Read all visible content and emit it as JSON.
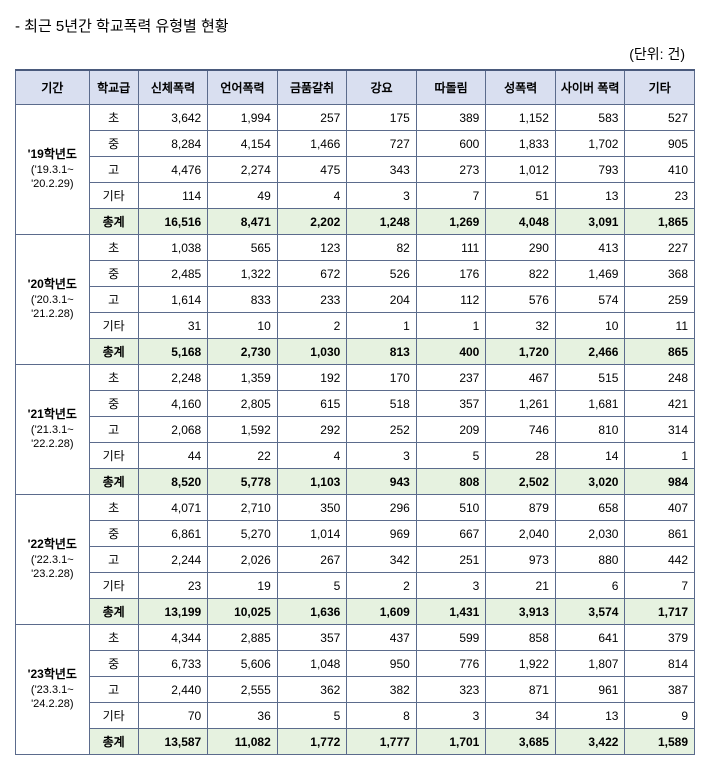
{
  "title": "- 최근 5년간  학교폭력 유형별 현황",
  "unit": "(단위: 건)",
  "headers": {
    "period": "기간",
    "level": "학교급",
    "physical": "신체폭력",
    "verbal": "언어폭력",
    "extortion": "금품갈취",
    "coercion": "강요",
    "bullying": "따돌림",
    "sexual": "성폭력",
    "cyber": "사이버\n폭력",
    "other": "기타"
  },
  "levels": {
    "elem": "초",
    "mid": "중",
    "high": "고",
    "etc": "기타",
    "total": "총계"
  },
  "periods": [
    {
      "name": "'19학년도",
      "range": "('19.3.1~\n'20.2.29)",
      "rows": {
        "elem": [
          "3,642",
          "1,994",
          "257",
          "175",
          "389",
          "1,152",
          "583",
          "527"
        ],
        "mid": [
          "8,284",
          "4,154",
          "1,466",
          "727",
          "600",
          "1,833",
          "1,702",
          "905"
        ],
        "high": [
          "4,476",
          "2,274",
          "475",
          "343",
          "273",
          "1,012",
          "793",
          "410"
        ],
        "etc": [
          "114",
          "49",
          "4",
          "3",
          "7",
          "51",
          "13",
          "23"
        ],
        "total": [
          "16,516",
          "8,471",
          "2,202",
          "1,248",
          "1,269",
          "4,048",
          "3,091",
          "1,865"
        ]
      }
    },
    {
      "name": "'20학년도",
      "range": "('20.3.1~\n'21.2.28)",
      "rows": {
        "elem": [
          "1,038",
          "565",
          "123",
          "82",
          "111",
          "290",
          "413",
          "227"
        ],
        "mid": [
          "2,485",
          "1,322",
          "672",
          "526",
          "176",
          "822",
          "1,469",
          "368"
        ],
        "high": [
          "1,614",
          "833",
          "233",
          "204",
          "112",
          "576",
          "574",
          "259"
        ],
        "etc": [
          "31",
          "10",
          "2",
          "1",
          "1",
          "32",
          "10",
          "11"
        ],
        "total": [
          "5,168",
          "2,730",
          "1,030",
          "813",
          "400",
          "1,720",
          "2,466",
          "865"
        ]
      }
    },
    {
      "name": "'21학년도",
      "range": "('21.3.1~\n'22.2.28)",
      "rows": {
        "elem": [
          "2,248",
          "1,359",
          "192",
          "170",
          "237",
          "467",
          "515",
          "248"
        ],
        "mid": [
          "4,160",
          "2,805",
          "615",
          "518",
          "357",
          "1,261",
          "1,681",
          "421"
        ],
        "high": [
          "2,068",
          "1,592",
          "292",
          "252",
          "209",
          "746",
          "810",
          "314"
        ],
        "etc": [
          "44",
          "22",
          "4",
          "3",
          "5",
          "28",
          "14",
          "1"
        ],
        "total": [
          "8,520",
          "5,778",
          "1,103",
          "943",
          "808",
          "2,502",
          "3,020",
          "984"
        ]
      }
    },
    {
      "name": "'22학년도",
      "range": "('22.3.1~\n'23.2.28)",
      "rows": {
        "elem": [
          "4,071",
          "2,710",
          "350",
          "296",
          "510",
          "879",
          "658",
          "407"
        ],
        "mid": [
          "6,861",
          "5,270",
          "1,014",
          "969",
          "667",
          "2,040",
          "2,030",
          "861"
        ],
        "high": [
          "2,244",
          "2,026",
          "267",
          "342",
          "251",
          "973",
          "880",
          "442"
        ],
        "etc": [
          "23",
          "19",
          "5",
          "2",
          "3",
          "21",
          "6",
          "7"
        ],
        "total": [
          "13,199",
          "10,025",
          "1,636",
          "1,609",
          "1,431",
          "3,913",
          "3,574",
          "1,717"
        ]
      }
    },
    {
      "name": "'23학년도",
      "range": "('23.3.1~\n'24.2.28)",
      "rows": {
        "elem": [
          "4,344",
          "2,885",
          "357",
          "437",
          "599",
          "858",
          "641",
          "379"
        ],
        "mid": [
          "6,733",
          "5,606",
          "1,048",
          "950",
          "776",
          "1,922",
          "1,807",
          "814"
        ],
        "high": [
          "2,440",
          "2,555",
          "362",
          "382",
          "323",
          "871",
          "961",
          "387"
        ],
        "etc": [
          "70",
          "36",
          "5",
          "8",
          "3",
          "34",
          "13",
          "9"
        ],
        "total": [
          "13,587",
          "11,082",
          "1,772",
          "1,777",
          "1,701",
          "3,685",
          "3,422",
          "1,589"
        ]
      }
    }
  ],
  "styling": {
    "header_bg": "#d9dff0",
    "total_row_bg": "#e6f2e0",
    "border_color": "#5b6b8c",
    "font_size_title": 15,
    "font_size_cell": 12
  }
}
